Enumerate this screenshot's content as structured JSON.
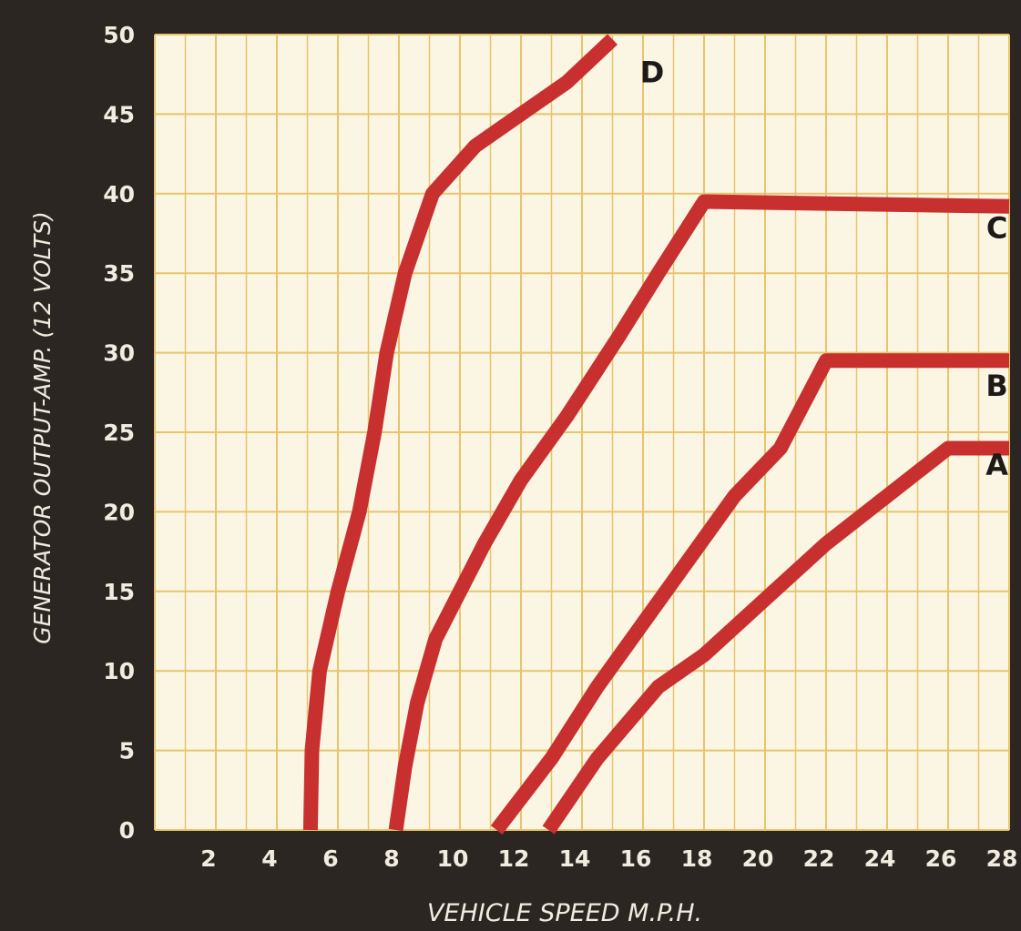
{
  "chart_data": {
    "type": "line",
    "xlabel": "VEHICLE SPEED M.P.H.",
    "ylabel": "GENERATOR OUTPUT-AMP. (12 VOLTS)",
    "xlim": [
      0,
      28
    ],
    "ylim": [
      0,
      50
    ],
    "x_ticks": [
      2,
      4,
      6,
      8,
      10,
      12,
      14,
      16,
      18,
      20,
      22,
      24,
      26,
      28
    ],
    "y_ticks": [
      0,
      5,
      10,
      15,
      20,
      25,
      30,
      35,
      40,
      45,
      50
    ],
    "grid": true,
    "grid_color": "#e8c46a",
    "plot_background": "#fbf6e4",
    "page_background": "#2c2623",
    "line_color": "#c8302f",
    "series": [
      {
        "name": "A",
        "points": [
          [
            12.9,
            0
          ],
          [
            14.5,
            4.5
          ],
          [
            16.5,
            9
          ],
          [
            18,
            11
          ],
          [
            20,
            14.5
          ],
          [
            22,
            18
          ],
          [
            24,
            21
          ],
          [
            26,
            24
          ],
          [
            28,
            24
          ]
        ]
      },
      {
        "name": "B",
        "points": [
          [
            11.2,
            0
          ],
          [
            13,
            4.5
          ],
          [
            14.5,
            9
          ],
          [
            16,
            13
          ],
          [
            17.5,
            17
          ],
          [
            19,
            21
          ],
          [
            20.5,
            24
          ],
          [
            22,
            29.5
          ],
          [
            28,
            29.5
          ]
        ]
      },
      {
        "name": "C",
        "points": [
          [
            7.9,
            0
          ],
          [
            8.2,
            4
          ],
          [
            8.6,
            8
          ],
          [
            9.2,
            12
          ],
          [
            10,
            15
          ],
          [
            10.8,
            18
          ],
          [
            12,
            22
          ],
          [
            13.5,
            26
          ],
          [
            15.2,
            31
          ],
          [
            16.5,
            35
          ],
          [
            18,
            39.5
          ],
          [
            28,
            39.2
          ]
        ]
      },
      {
        "name": "D",
        "points": [
          [
            5.1,
            0
          ],
          [
            5.15,
            5
          ],
          [
            5.4,
            10
          ],
          [
            6,
            15
          ],
          [
            6.7,
            20
          ],
          [
            7.2,
            25
          ],
          [
            7.6,
            30
          ],
          [
            8.2,
            35
          ],
          [
            9.1,
            40
          ],
          [
            10.5,
            43
          ],
          [
            12,
            45
          ],
          [
            13.5,
            47
          ],
          [
            15,
            49.7
          ]
        ]
      }
    ]
  }
}
